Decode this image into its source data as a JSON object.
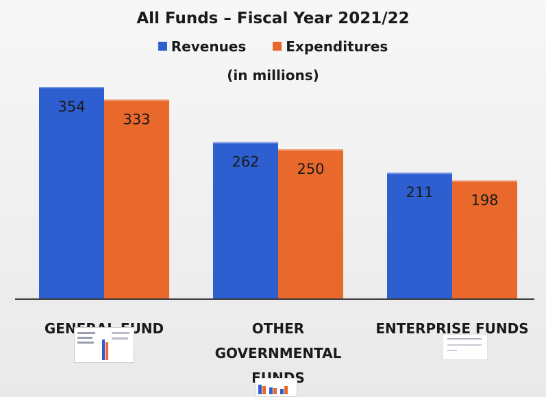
{
  "chart_data": {
    "type": "bar",
    "title": "All Funds – Fiscal Year 2021/22",
    "subtitle": "(in millions)",
    "categories": [
      "GENERAL FUND",
      "OTHER GOVERNMENTAL FUNDS",
      "ENTERPRISE FUNDS"
    ],
    "category_lines": [
      [
        "GENERAL FUND"
      ],
      [
        "OTHER",
        "GOVERNMENTAL",
        "FUNDS"
      ],
      [
        "ENTERPRISE FUNDS"
      ]
    ],
    "series": [
      {
        "name": "Revenues",
        "values": [
          354,
          262,
          211
        ],
        "color": "#2e5fd1"
      },
      {
        "name": "Expenditures",
        "values": [
          333,
          250,
          198
        ],
        "color": "#e8692b"
      }
    ],
    "ylim": [
      0,
      354
    ],
    "grid": false,
    "legend_position": "top"
  }
}
